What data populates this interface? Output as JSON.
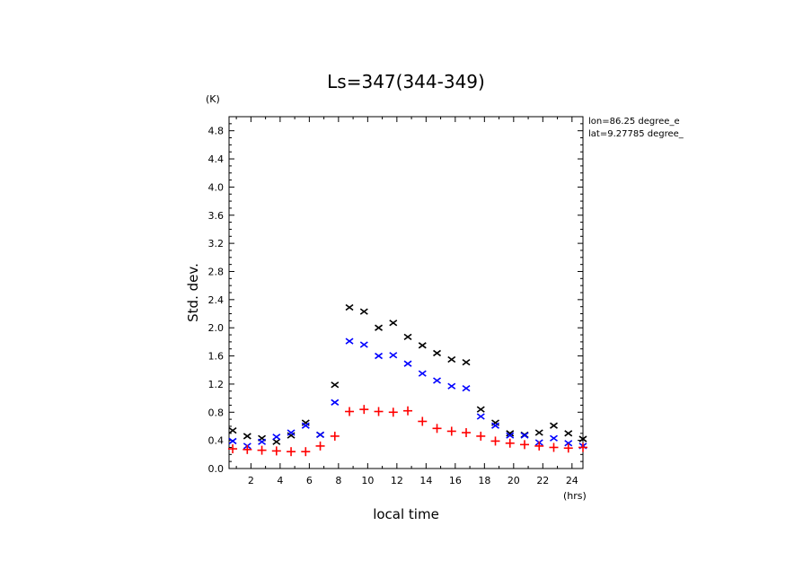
{
  "chart_data": {
    "type": "scatter",
    "title": "Ls=347(344-349)",
    "xlabel": "local time",
    "ylabel": "Std. dev.",
    "x_unit": "(hrs)",
    "y_unit": "(K)",
    "annotations": [
      "lon=86.25 degree_e",
      "lat=9.27785 degree_"
    ],
    "xlim": [
      0.5,
      24.75
    ],
    "ylim": [
      0,
      5.0
    ],
    "xticks": [
      2,
      4,
      6,
      8,
      10,
      12,
      14,
      16,
      18,
      20,
      22,
      24
    ],
    "xtick_labels": [
      "2",
      "4",
      "6",
      "8",
      "10",
      "12",
      "14",
      "16",
      "18",
      "20",
      "22",
      "24"
    ],
    "yticks": [
      0,
      0.4,
      0.8,
      1.2,
      1.6,
      2.0,
      2.4,
      2.8,
      3.2,
      3.6,
      4.0,
      4.4,
      4.8
    ],
    "ytick_labels": [
      "0.0",
      "0.4",
      "0.8",
      "1.2",
      "1.6",
      "2.0",
      "2.4",
      "2.8",
      "3.2",
      "3.6",
      "4.0",
      "4.4",
      "4.8"
    ],
    "grid": false,
    "x": [
      0.75,
      1.75,
      2.75,
      3.75,
      4.75,
      5.75,
      6.75,
      7.75,
      8.75,
      9.75,
      10.75,
      11.75,
      12.75,
      13.75,
      14.75,
      15.75,
      16.75,
      17.75,
      18.75,
      19.75,
      20.75,
      21.75,
      22.75,
      23.75,
      24.75
    ],
    "series": [
      {
        "marker": "x",
        "color": "#000000",
        "values": [
          0.54,
          0.46,
          0.43,
          0.38,
          0.47,
          0.65,
          0.48,
          1.19,
          2.29,
          2.23,
          2.0,
          2.07,
          1.87,
          1.75,
          1.64,
          1.55,
          1.51,
          0.84,
          0.65,
          0.5,
          0.48,
          0.51,
          0.61,
          0.5,
          0.42
        ]
      },
      {
        "marker": "x",
        "color": "#0000ff",
        "values": [
          0.39,
          0.32,
          0.38,
          0.45,
          0.51,
          0.61,
          0.48,
          0.94,
          1.81,
          1.76,
          1.6,
          1.61,
          1.49,
          1.35,
          1.25,
          1.17,
          1.14,
          0.74,
          0.61,
          0.47,
          0.47,
          0.37,
          0.43,
          0.36,
          0.32
        ]
      },
      {
        "marker": "+",
        "color": "#ff0000",
        "values": [
          0.28,
          0.27,
          0.26,
          0.25,
          0.24,
          0.24,
          0.32,
          0.46,
          0.81,
          0.84,
          0.81,
          0.8,
          0.82,
          0.67,
          0.57,
          0.53,
          0.51,
          0.46,
          0.39,
          0.36,
          0.34,
          0.32,
          0.3,
          0.29,
          0.3
        ]
      }
    ]
  }
}
